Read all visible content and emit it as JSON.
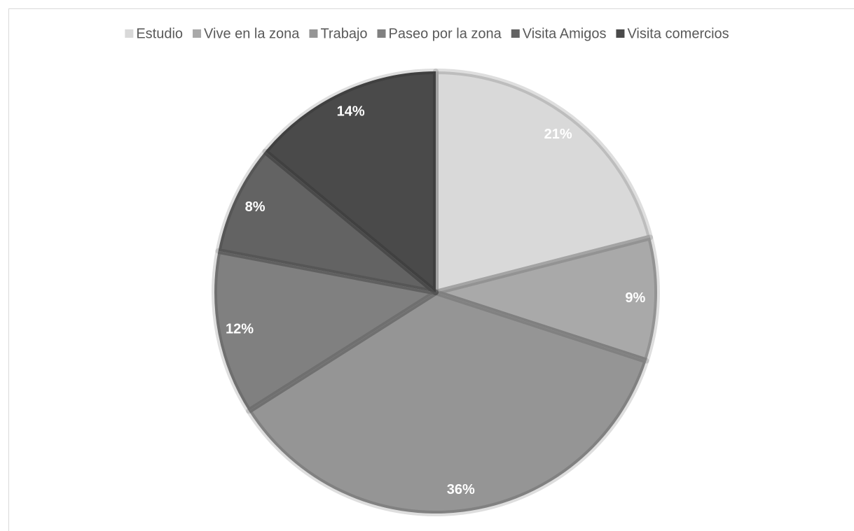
{
  "chart_data": {
    "type": "pie",
    "categories": [
      "Estudio",
      "Vive en la zona",
      "Trabajo",
      "Paseo por la zona",
      "Visita Amigos",
      "Visita comercios"
    ],
    "values": [
      21,
      9,
      36,
      12,
      8,
      14
    ],
    "value_labels": [
      "21%",
      "9%",
      "36%",
      "12%",
      "8%",
      "14%"
    ],
    "colors": [
      "#d9d9d9",
      "#a9a9a9",
      "#959595",
      "#808080",
      "#636363",
      "#4a4a4a"
    ],
    "legend": "top"
  }
}
